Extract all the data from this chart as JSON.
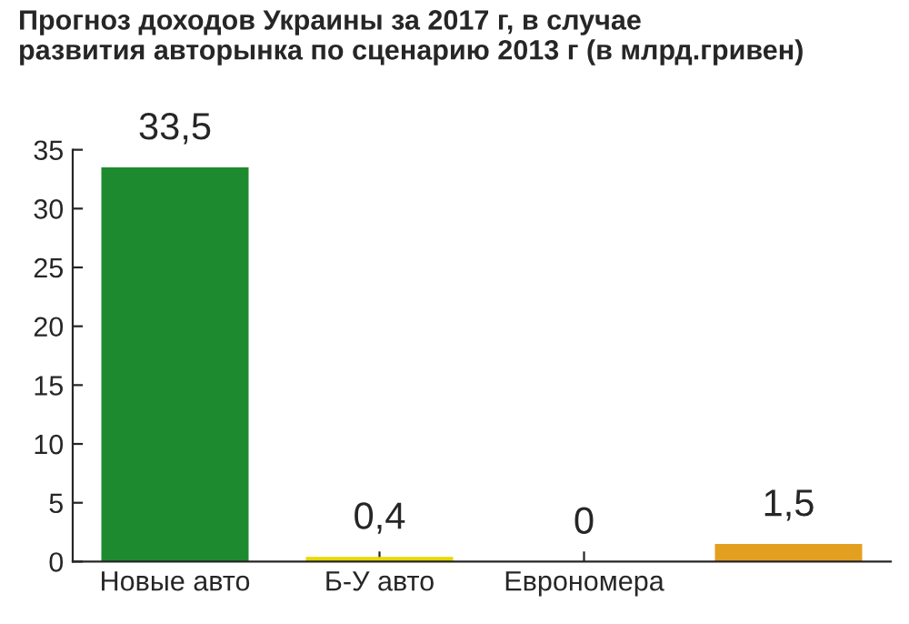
{
  "chart_data": {
    "type": "bar",
    "title": "Прогноз доходов Украины за 2017 г, в случае\nразвития авторынка по сценарию 2013 г (в млрд.гривен)",
    "categories": [
      "Новые авто",
      "Б-У авто",
      "Еврономера",
      null
    ],
    "values": [
      33.5,
      0.4,
      0,
      1.5
    ],
    "colors": [
      "#1e8a30",
      "#e6d800",
      "#8fb024",
      "#e3a020"
    ],
    "value_labels": [
      "33,5",
      "0,4",
      "0",
      "1,5"
    ],
    "ylim": [
      0,
      35
    ],
    "yticks": [
      0,
      5,
      10,
      15,
      20,
      25,
      30,
      35
    ],
    "grid": false,
    "legend": false
  }
}
